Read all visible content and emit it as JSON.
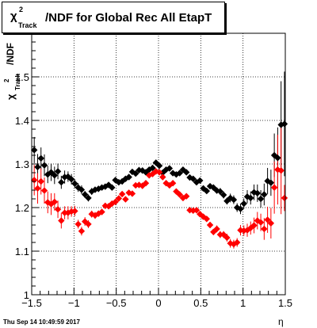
{
  "title": {
    "symbol": "χ",
    "superscript": "2",
    "subscript": "Track",
    "text": "/NDF for Global Rec All EtapT"
  },
  "footer": {
    "date": "Thu Sep 14 10:49:59 2017"
  },
  "axes": {
    "xlabel": "η",
    "ylabel_symbol": "χ",
    "ylabel_superscript": "2",
    "ylabel_subscript": "Track",
    "ylabel_suffix": "/NDF"
  },
  "chart_data": {
    "type": "scatter",
    "xlim": [
      -1.5,
      1.5
    ],
    "ylim": [
      1.0,
      1.6
    ],
    "x_ticks": [
      -1.5,
      -1,
      -0.5,
      0,
      0.5,
      1,
      1.5
    ],
    "x_tick_labels": [
      "−1.5",
      "−1",
      "−0.5",
      "0",
      "0.5",
      "1",
      "1.5"
    ],
    "y_ticks": [
      1.0,
      1.1,
      1.2,
      1.3,
      1.4,
      1.5
    ],
    "y_tick_labels": [
      "1",
      "1.1",
      "1.2",
      "1.3",
      "1.4",
      "1.5"
    ],
    "grid": true,
    "series": [
      {
        "color": "#000000",
        "x": [
          -1.47,
          -1.43,
          -1.39,
          -1.35,
          -1.31,
          -1.27,
          -1.23,
          -1.19,
          -1.15,
          -1.11,
          -1.07,
          -1.03,
          -0.99,
          -0.95,
          -0.91,
          -0.87,
          -0.83,
          -0.79,
          -0.75,
          -0.71,
          -0.67,
          -0.63,
          -0.59,
          -0.55,
          -0.51,
          -0.47,
          -0.43,
          -0.39,
          -0.35,
          -0.31,
          -0.27,
          -0.23,
          -0.19,
          -0.15,
          -0.11,
          -0.07,
          -0.03,
          0.01,
          0.05,
          0.09,
          0.13,
          0.17,
          0.21,
          0.25,
          0.29,
          0.33,
          0.37,
          0.41,
          0.45,
          0.49,
          0.53,
          0.57,
          0.61,
          0.65,
          0.69,
          0.73,
          0.77,
          0.81,
          0.85,
          0.89,
          0.93,
          0.97,
          1.01,
          1.05,
          1.09,
          1.13,
          1.17,
          1.21,
          1.25,
          1.29,
          1.33,
          1.37,
          1.41,
          1.45,
          1.49
        ],
        "y": [
          1.332,
          1.293,
          1.313,
          1.297,
          1.276,
          1.281,
          1.274,
          1.283,
          1.258,
          1.27,
          1.271,
          1.265,
          1.255,
          1.246,
          1.241,
          1.23,
          1.222,
          1.237,
          1.241,
          1.243,
          1.246,
          1.248,
          1.252,
          1.246,
          1.263,
          1.258,
          1.26,
          1.266,
          1.27,
          1.282,
          1.278,
          1.286,
          1.285,
          1.281,
          1.287,
          1.291,
          1.303,
          1.296,
          1.28,
          1.287,
          1.29,
          1.279,
          1.276,
          1.279,
          1.287,
          1.281,
          1.269,
          1.266,
          1.258,
          1.262,
          1.244,
          1.238,
          1.249,
          1.246,
          1.239,
          1.237,
          1.229,
          1.215,
          1.222,
          1.218,
          1.2,
          1.197,
          1.209,
          1.225,
          1.222,
          1.235,
          1.233,
          1.22,
          1.23,
          1.261,
          1.257,
          1.32,
          1.314,
          1.39,
          1.392
        ],
        "err": [
          0.03,
          0.03,
          0.025,
          0.025,
          0.02,
          0.02,
          0.02,
          0.018,
          0.015,
          0.015,
          0.012,
          0.012,
          0.01,
          0.01,
          0.01,
          0.008,
          0.008,
          0.008,
          0.007,
          0.007,
          0.006,
          0.006,
          0.006,
          0.006,
          0.006,
          0.006,
          0.006,
          0.006,
          0.006,
          0.006,
          0.006,
          0.006,
          0.006,
          0.006,
          0.006,
          0.006,
          0.006,
          0.006,
          0.006,
          0.006,
          0.006,
          0.006,
          0.006,
          0.006,
          0.006,
          0.006,
          0.006,
          0.006,
          0.006,
          0.006,
          0.006,
          0.006,
          0.006,
          0.007,
          0.007,
          0.008,
          0.008,
          0.008,
          0.01,
          0.01,
          0.01,
          0.012,
          0.012,
          0.015,
          0.015,
          0.018,
          0.02,
          0.02,
          0.025,
          0.03,
          0.03,
          0.05,
          0.07,
          0.1,
          0.12
        ]
      },
      {
        "color": "#ff0000",
        "x": [
          -1.47,
          -1.43,
          -1.39,
          -1.35,
          -1.31,
          -1.27,
          -1.23,
          -1.19,
          -1.15,
          -1.11,
          -1.07,
          -1.03,
          -0.99,
          -0.95,
          -0.91,
          -0.87,
          -0.83,
          -0.79,
          -0.75,
          -0.71,
          -0.67,
          -0.63,
          -0.59,
          -0.55,
          -0.51,
          -0.47,
          -0.43,
          -0.39,
          -0.35,
          -0.31,
          -0.27,
          -0.23,
          -0.19,
          -0.15,
          -0.11,
          -0.07,
          -0.03,
          0.01,
          0.05,
          0.09,
          0.13,
          0.17,
          0.21,
          0.25,
          0.29,
          0.33,
          0.37,
          0.41,
          0.45,
          0.49,
          0.53,
          0.57,
          0.61,
          0.65,
          0.69,
          0.73,
          0.77,
          0.81,
          0.85,
          0.89,
          0.93,
          0.97,
          1.01,
          1.05,
          1.09,
          1.13,
          1.17,
          1.21,
          1.25,
          1.29,
          1.33,
          1.37,
          1.41,
          1.45,
          1.49
        ],
        "y": [
          1.263,
          1.244,
          1.26,
          1.239,
          1.212,
          1.208,
          1.213,
          1.196,
          1.17,
          1.188,
          1.188,
          1.191,
          1.192,
          1.162,
          1.146,
          1.168,
          1.162,
          1.185,
          1.182,
          1.186,
          1.19,
          1.204,
          1.203,
          1.209,
          1.213,
          1.221,
          1.231,
          1.219,
          1.234,
          1.232,
          1.251,
          1.252,
          1.25,
          1.256,
          1.274,
          1.277,
          1.283,
          1.281,
          1.27,
          1.256,
          1.251,
          1.256,
          1.237,
          1.23,
          1.222,
          1.226,
          1.194,
          1.193,
          1.194,
          1.185,
          1.179,
          1.174,
          1.16,
          1.144,
          1.151,
          1.138,
          1.138,
          1.131,
          1.118,
          1.116,
          1.12,
          1.148,
          1.147,
          1.148,
          1.153,
          1.159,
          1.17,
          1.166,
          1.151,
          1.172,
          1.164,
          1.246,
          1.287,
          1.285,
          1.222
        ],
        "err": [
          0.035,
          0.035,
          0.03,
          0.03,
          0.025,
          0.025,
          0.02,
          0.02,
          0.018,
          0.015,
          0.015,
          0.012,
          0.012,
          0.01,
          0.01,
          0.01,
          0.009,
          0.008,
          0.008,
          0.007,
          0.007,
          0.007,
          0.006,
          0.006,
          0.006,
          0.006,
          0.006,
          0.006,
          0.006,
          0.006,
          0.006,
          0.006,
          0.006,
          0.006,
          0.006,
          0.006,
          0.006,
          0.006,
          0.006,
          0.006,
          0.006,
          0.006,
          0.006,
          0.006,
          0.006,
          0.006,
          0.006,
          0.006,
          0.006,
          0.006,
          0.006,
          0.006,
          0.007,
          0.007,
          0.008,
          0.008,
          0.008,
          0.009,
          0.01,
          0.01,
          0.01,
          0.012,
          0.012,
          0.015,
          0.015,
          0.018,
          0.02,
          0.02,
          0.025,
          0.03,
          0.035,
          0.06,
          0.08,
          0.1,
          0.03
        ]
      }
    ]
  }
}
